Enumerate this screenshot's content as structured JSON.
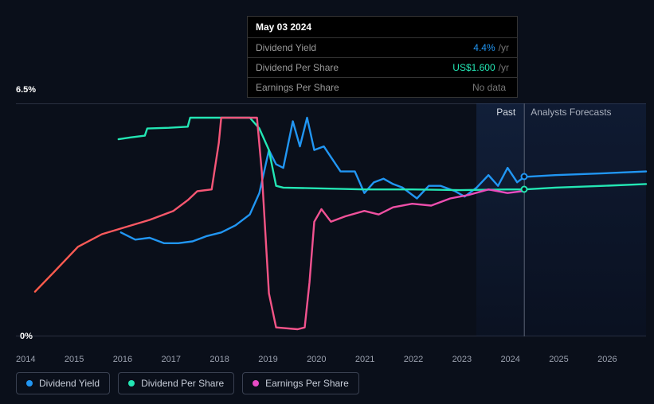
{
  "tooltip": {
    "date": "May 03 2024",
    "rows": [
      {
        "label": "Dividend Yield",
        "value": "4.4%",
        "unit": "/yr",
        "color": "#2196f3"
      },
      {
        "label": "Dividend Per Share",
        "value": "US$1.600",
        "unit": "/yr",
        "color": "#23e6b4"
      },
      {
        "label": "Earnings Per Share",
        "value": "No data",
        "unit": "",
        "color": "#777"
      }
    ]
  },
  "chart": {
    "y_top_label": "6.5%",
    "y_bottom_label": "0%",
    "y_min": 0,
    "y_max": 6.5,
    "x_min": 2013.7,
    "x_max": 2026.9,
    "x_ticks": [
      "2014",
      "2015",
      "2016",
      "2017",
      "2018",
      "2019",
      "2020",
      "2021",
      "2022",
      "2023",
      "2024",
      "2025",
      "2026"
    ],
    "grid_color": "#2a3040",
    "past_band": {
      "start": 2023.35,
      "end": 2024.35,
      "label": "Past"
    },
    "forecast_band": {
      "start": 2024.35,
      "end": 2026.9,
      "label": "Analysts Forecasts"
    },
    "vline_x": 2024.35,
    "markers": [
      {
        "x": 2024.35,
        "y": 4.45,
        "color": "#2196f3"
      },
      {
        "x": 2024.35,
        "y": 4.1,
        "color": "#23e6b4"
      }
    ],
    "series": [
      {
        "name": "Dividend Yield",
        "color": "#2196f3",
        "width": 2.4,
        "points": [
          [
            2015.9,
            2.9
          ],
          [
            2016.2,
            2.7
          ],
          [
            2016.5,
            2.75
          ],
          [
            2016.8,
            2.6
          ],
          [
            2017.1,
            2.6
          ],
          [
            2017.4,
            2.65
          ],
          [
            2017.7,
            2.8
          ],
          [
            2018.0,
            2.9
          ],
          [
            2018.3,
            3.1
          ],
          [
            2018.6,
            3.4
          ],
          [
            2018.8,
            4.0
          ],
          [
            2019.0,
            5.2
          ],
          [
            2019.15,
            4.8
          ],
          [
            2019.3,
            4.7
          ],
          [
            2019.5,
            6.0
          ],
          [
            2019.65,
            5.3
          ],
          [
            2019.8,
            6.1
          ],
          [
            2019.95,
            5.2
          ],
          [
            2020.15,
            5.3
          ],
          [
            2020.3,
            5.0
          ],
          [
            2020.5,
            4.6
          ],
          [
            2020.8,
            4.6
          ],
          [
            2021.0,
            4.0
          ],
          [
            2021.2,
            4.3
          ],
          [
            2021.4,
            4.4
          ],
          [
            2021.6,
            4.25
          ],
          [
            2021.8,
            4.15
          ],
          [
            2022.1,
            3.85
          ],
          [
            2022.35,
            4.2
          ],
          [
            2022.6,
            4.2
          ],
          [
            2022.9,
            4.05
          ],
          [
            2023.1,
            3.9
          ],
          [
            2023.35,
            4.15
          ],
          [
            2023.6,
            4.5
          ],
          [
            2023.8,
            4.2
          ],
          [
            2024.0,
            4.7
          ],
          [
            2024.2,
            4.3
          ],
          [
            2024.35,
            4.45
          ],
          [
            2025.0,
            4.5
          ],
          [
            2026.0,
            4.55
          ],
          [
            2026.9,
            4.6
          ]
        ]
      },
      {
        "name": "Dividend Per Share",
        "color": "#23e6b4",
        "width": 2.4,
        "points": [
          [
            2015.85,
            5.5
          ],
          [
            2016.1,
            5.55
          ],
          [
            2016.4,
            5.6
          ],
          [
            2016.45,
            5.8
          ],
          [
            2016.9,
            5.82
          ],
          [
            2017.3,
            5.85
          ],
          [
            2017.35,
            6.1
          ],
          [
            2018.3,
            6.1
          ],
          [
            2018.6,
            6.1
          ],
          [
            2018.8,
            5.8
          ],
          [
            2019.0,
            5.2
          ],
          [
            2019.15,
            4.2
          ],
          [
            2019.3,
            4.15
          ],
          [
            2021.0,
            4.1
          ],
          [
            2022.0,
            4.1
          ],
          [
            2023.0,
            4.08
          ],
          [
            2024.0,
            4.1
          ],
          [
            2024.35,
            4.1
          ],
          [
            2025.0,
            4.15
          ],
          [
            2026.0,
            4.2
          ],
          [
            2026.9,
            4.25
          ]
        ]
      },
      {
        "name": "Earnings Per Share",
        "color_gradient": {
          "from": "#ff5c4a",
          "to": "#e84bc5"
        },
        "width": 2.4,
        "points": [
          [
            2014.1,
            1.25
          ],
          [
            2014.5,
            1.8
          ],
          [
            2015.0,
            2.5
          ],
          [
            2015.5,
            2.85
          ],
          [
            2016.0,
            3.05
          ],
          [
            2016.5,
            3.25
          ],
          [
            2017.0,
            3.5
          ],
          [
            2017.3,
            3.8
          ],
          [
            2017.5,
            4.05
          ],
          [
            2017.8,
            4.1
          ],
          [
            2017.95,
            5.4
          ],
          [
            2018.0,
            6.1
          ],
          [
            2018.75,
            6.1
          ],
          [
            2018.85,
            4.6
          ],
          [
            2019.0,
            1.2
          ],
          [
            2019.15,
            0.25
          ],
          [
            2019.6,
            0.2
          ],
          [
            2019.75,
            0.25
          ],
          [
            2019.85,
            1.5
          ],
          [
            2019.95,
            3.2
          ],
          [
            2020.1,
            3.55
          ],
          [
            2020.3,
            3.2
          ],
          [
            2020.6,
            3.35
          ],
          [
            2021.0,
            3.5
          ],
          [
            2021.3,
            3.4
          ],
          [
            2021.6,
            3.6
          ],
          [
            2022.0,
            3.7
          ],
          [
            2022.4,
            3.65
          ],
          [
            2022.8,
            3.85
          ],
          [
            2023.2,
            3.95
          ],
          [
            2023.6,
            4.1
          ],
          [
            2024.0,
            4.0
          ],
          [
            2024.3,
            4.05
          ]
        ]
      }
    ]
  },
  "legend": [
    {
      "label": "Dividend Yield",
      "color": "#2196f3"
    },
    {
      "label": "Dividend Per Share",
      "color": "#23e6b4"
    },
    {
      "label": "Earnings Per Share",
      "color": "#e84bc5"
    }
  ]
}
